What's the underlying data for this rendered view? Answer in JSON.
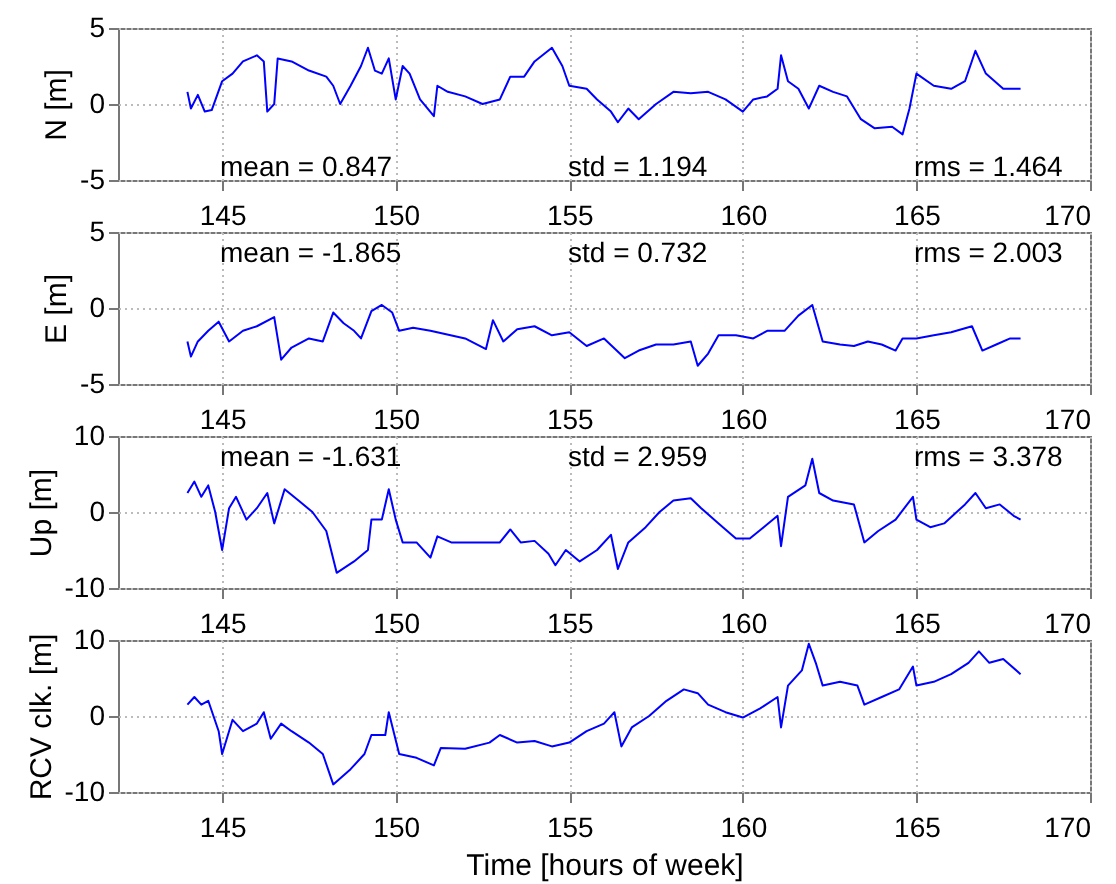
{
  "chart_data": [
    {
      "type": "line",
      "ylabel": "N [m]",
      "xlim": [
        142,
        170
      ],
      "xticks": [
        145,
        150,
        155,
        160,
        165,
        170
      ],
      "ylim": [
        -5,
        5
      ],
      "yticks": [
        -5,
        0,
        5
      ],
      "grid": true,
      "annotations": [
        "mean = 0.847",
        "std = 1.194",
        "rms = 1.464"
      ],
      "x": [
        144.0,
        144.1,
        144.3,
        144.5,
        144.7,
        145.0,
        145.3,
        145.6,
        146.0,
        146.2,
        146.3,
        146.5,
        146.6,
        147.0,
        147.5,
        148.0,
        148.2,
        148.4,
        148.7,
        149.0,
        149.2,
        149.4,
        149.6,
        149.8,
        150.0,
        150.2,
        150.4,
        150.7,
        151.1,
        151.2,
        151.5,
        152.0,
        152.5,
        153.0,
        153.3,
        153.7,
        154.0,
        154.5,
        154.8,
        155.0,
        155.5,
        155.8,
        156.2,
        156.4,
        156.7,
        157.0,
        157.5,
        158.0,
        158.5,
        159.0,
        159.5,
        160.0,
        160.3,
        160.7,
        161.0,
        161.1,
        161.3,
        161.6,
        161.9,
        162.2,
        162.6,
        163.0,
        163.4,
        163.8,
        164.3,
        164.6,
        164.8,
        165.0,
        165.5,
        166.0,
        166.4,
        166.7,
        167.0,
        167.5,
        168.0
      ],
      "series": [
        {
          "color": "#0000ff",
          "values": [
            0.8,
            -0.3,
            0.6,
            -0.5,
            -0.4,
            1.5,
            2.0,
            2.8,
            3.2,
            2.8,
            -0.5,
            0,
            3.0,
            2.8,
            2.2,
            1.8,
            1.2,
            0,
            1.2,
            2.5,
            3.7,
            2.2,
            2.0,
            3.0,
            0.3,
            2.5,
            2.0,
            0.3,
            -0.8,
            1.2,
            0.8,
            0.5,
            0,
            0.3,
            1.8,
            1.8,
            2.8,
            3.7,
            2.5,
            1.2,
            1.0,
            0.3,
            -0.5,
            -1.2,
            -0.3,
            -1.0,
            0,
            0.8,
            0.7,
            0.8,
            0.3,
            -0.5,
            0.3,
            0.5,
            1.0,
            3.2,
            1.5,
            1.0,
            -0.3,
            1.2,
            0.8,
            0.5,
            -1.0,
            -1.6,
            -1.5,
            -2.0,
            -0.3,
            2.0,
            1.2,
            1.0,
            1.5,
            3.5,
            2.0,
            1.0,
            1.0
          ]
        }
      ]
    },
    {
      "type": "line",
      "ylabel": "E [m]",
      "xlim": [
        142,
        170
      ],
      "xticks": [
        145,
        150,
        155,
        160,
        165,
        170
      ],
      "ylim": [
        -5,
        5
      ],
      "yticks": [
        -5,
        0,
        5
      ],
      "grid": true,
      "annotations": [
        "mean = -1.865",
        "std = 0.732",
        "rms = 2.003"
      ],
      "x": [
        144.0,
        144.1,
        144.3,
        144.6,
        144.9,
        145.2,
        145.6,
        146.0,
        146.5,
        146.7,
        147.0,
        147.5,
        147.9,
        148.2,
        148.5,
        148.8,
        149.0,
        149.3,
        149.6,
        149.9,
        150.1,
        150.5,
        151.0,
        152.0,
        152.6,
        152.8,
        153.1,
        153.5,
        154.0,
        154.5,
        155.0,
        155.5,
        156.0,
        156.6,
        157.0,
        157.5,
        158.0,
        158.5,
        158.7,
        159.0,
        159.3,
        159.8,
        160.3,
        160.7,
        161.2,
        161.6,
        162.0,
        162.3,
        162.8,
        163.2,
        163.6,
        164.0,
        164.4,
        164.6,
        165.0,
        165.5,
        166.0,
        166.6,
        166.9,
        167.3,
        167.7,
        168.0
      ],
      "series": [
        {
          "color": "#0000ff",
          "values": [
            -2.2,
            -3.2,
            -2.2,
            -1.5,
            -0.9,
            -2.2,
            -1.5,
            -1.2,
            -0.6,
            -3.4,
            -2.6,
            -2.0,
            -2.2,
            -0.3,
            -1.0,
            -1.5,
            -2.0,
            -0.2,
            0.2,
            -0.3,
            -1.5,
            -1.3,
            -1.5,
            -2.0,
            -2.7,
            -0.8,
            -2.2,
            -1.4,
            -1.2,
            -1.8,
            -1.6,
            -2.5,
            -2.0,
            -3.3,
            -2.8,
            -2.4,
            -2.4,
            -2.2,
            -3.8,
            -3.0,
            -1.8,
            -1.8,
            -2.0,
            -1.5,
            -1.5,
            -0.5,
            0.2,
            -2.2,
            -2.4,
            -2.5,
            -2.2,
            -2.4,
            -2.8,
            -2.0,
            -2.0,
            -1.8,
            -1.6,
            -1.2,
            -2.8,
            -2.4,
            -2.0,
            -2.0
          ]
        }
      ]
    },
    {
      "type": "line",
      "ylabel": "Up [m]",
      "xlim": [
        142,
        170
      ],
      "xticks": [
        145,
        150,
        155,
        160,
        165,
        170
      ],
      "ylim": [
        -10,
        10
      ],
      "yticks": [
        -10,
        0,
        10
      ],
      "grid": true,
      "annotations": [
        "mean = -1.631",
        "std = 2.959",
        "rms = 3.378"
      ],
      "x": [
        144.0,
        144.2,
        144.4,
        144.6,
        144.8,
        145.0,
        145.2,
        145.4,
        145.7,
        146.0,
        146.3,
        146.5,
        146.8,
        147.2,
        147.6,
        148.0,
        148.3,
        148.8,
        149.2,
        149.3,
        149.6,
        149.8,
        150.0,
        150.2,
        150.6,
        151.0,
        151.2,
        151.6,
        152.5,
        153.0,
        153.3,
        153.6,
        154.0,
        154.4,
        154.6,
        154.9,
        155.3,
        155.8,
        156.2,
        156.4,
        156.7,
        157.2,
        157.6,
        158.0,
        158.5,
        158.8,
        159.3,
        159.8,
        160.2,
        160.6,
        161.0,
        161.1,
        161.3,
        161.8,
        162.0,
        162.2,
        162.6,
        163.2,
        163.5,
        163.9,
        164.4,
        164.9,
        165.0,
        165.4,
        165.8,
        166.4,
        166.7,
        167.0,
        167.4,
        167.8,
        168.0
      ],
      "series": [
        {
          "color": "#0000ff",
          "values": [
            2.5,
            4.0,
            2.0,
            3.5,
            0,
            -5.0,
            0.5,
            2.0,
            -1.0,
            0.5,
            2.5,
            -1.5,
            3.0,
            1.5,
            0,
            -2.5,
            -8.0,
            -6.5,
            -5.0,
            -1.0,
            -1.0,
            3.0,
            -1.0,
            -4.0,
            -4.0,
            -6.0,
            -3.2,
            -4.0,
            -4.0,
            -4.0,
            -2.3,
            -4.0,
            -3.8,
            -5.5,
            -7.0,
            -5.0,
            -6.5,
            -5.0,
            -3.0,
            -7.5,
            -4.0,
            -2.0,
            0,
            1.5,
            1.8,
            0.5,
            -1.5,
            -3.5,
            -3.5,
            -2.0,
            -0.5,
            -4.5,
            2.0,
            3.5,
            7.0,
            2.5,
            1.5,
            1.0,
            -4.0,
            -2.5,
            -1.0,
            2.0,
            -1.0,
            -2.0,
            -1.5,
            1.0,
            2.5,
            0.5,
            1.0,
            -0.5,
            -1.0
          ]
        }
      ]
    },
    {
      "type": "line",
      "ylabel": "RCV clk. [m]",
      "xlabel": "Time [hours of week]",
      "xlim": [
        142,
        170
      ],
      "xticks": [
        145,
        150,
        155,
        160,
        165,
        170
      ],
      "ylim": [
        -10,
        10
      ],
      "yticks": [
        -10,
        0,
        10
      ],
      "grid": true,
      "x": [
        144.0,
        144.2,
        144.4,
        144.6,
        144.9,
        145.0,
        145.3,
        145.6,
        146.0,
        146.2,
        146.4,
        146.7,
        147.0,
        147.5,
        147.9,
        148.2,
        148.7,
        149.1,
        149.3,
        149.7,
        149.8,
        150.1,
        150.6,
        151.1,
        151.3,
        152.0,
        152.7,
        153.0,
        153.5,
        154.0,
        154.5,
        155.0,
        155.5,
        156.0,
        156.3,
        156.5,
        156.8,
        157.3,
        157.8,
        158.3,
        158.7,
        159.0,
        159.5,
        160.0,
        160.5,
        161.0,
        161.1,
        161.3,
        161.7,
        161.9,
        162.1,
        162.3,
        162.8,
        163.3,
        163.5,
        164.0,
        164.5,
        164.9,
        165.0,
        165.5,
        166.0,
        166.5,
        166.8,
        167.1,
        167.5,
        168.0
      ],
      "series": [
        {
          "color": "#0000ff",
          "values": [
            1.5,
            2.5,
            1.5,
            2.0,
            -2.0,
            -5.0,
            -0.5,
            -2.0,
            -1.0,
            0.5,
            -3.0,
            -1.0,
            -2.0,
            -3.5,
            -5.0,
            -9.0,
            -7.0,
            -5.0,
            -2.5,
            -2.5,
            0.5,
            -5.0,
            -5.5,
            -6.5,
            -4.2,
            -4.3,
            -3.5,
            -2.5,
            -3.5,
            -3.3,
            -4.0,
            -3.5,
            -2.0,
            -1.0,
            0.5,
            -4.0,
            -1.5,
            0,
            2.0,
            3.5,
            3.0,
            1.5,
            0.5,
            -0.2,
            1.0,
            2.5,
            -1.5,
            4.0,
            6.0,
            9.5,
            7.0,
            4.0,
            4.5,
            4.0,
            1.5,
            2.5,
            3.5,
            6.5,
            4.0,
            4.5,
            5.5,
            7.0,
            8.5,
            7.0,
            7.5,
            5.5
          ]
        }
      ]
    }
  ]
}
